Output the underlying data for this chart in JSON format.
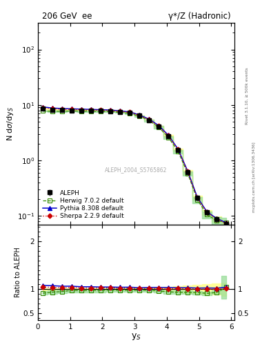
{
  "title_left": "206 GeV  ee",
  "title_right": "γ*/Z (Hadronic)",
  "ylabel_main": "N dσ/dy$_S$",
  "ylabel_ratio": "Ratio to ALEPH",
  "xlabel": "y$_S$",
  "watermark": "ALEPH_2004_S5765862",
  "right_label_top": "Rivet 3.1.10, ≥ 500k events",
  "right_label_bot": "mcplots.cern.ch [arXiv:1306.3436]",
  "xlim": [
    0,
    6.1
  ],
  "ylim_main": [
    0.07,
    300
  ],
  "ylim_ratio": [
    0.35,
    2.35
  ],
  "ratio_yticks": [
    0.5,
    1.0,
    2.0
  ],
  "aleph_x": [
    0.15,
    0.45,
    0.75,
    1.05,
    1.35,
    1.65,
    1.95,
    2.25,
    2.55,
    2.85,
    3.15,
    3.45,
    3.75,
    4.05,
    4.35,
    4.65,
    4.95,
    5.25,
    5.55,
    5.85
  ],
  "aleph_y": [
    8.5,
    8.2,
    8.1,
    8.0,
    8.0,
    7.9,
    7.85,
    7.75,
    7.5,
    7.2,
    6.4,
    5.35,
    4.1,
    2.75,
    1.55,
    0.62,
    0.21,
    0.115,
    0.088,
    0.072
  ],
  "aleph_yerr": [
    0.2,
    0.15,
    0.13,
    0.12,
    0.11,
    0.11,
    0.1,
    0.1,
    0.1,
    0.1,
    0.1,
    0.12,
    0.14,
    0.12,
    0.09,
    0.05,
    0.018,
    0.012,
    0.01,
    0.01
  ],
  "herwig_y": [
    7.8,
    7.7,
    7.7,
    7.8,
    7.75,
    7.7,
    7.65,
    7.6,
    7.35,
    7.05,
    6.25,
    5.25,
    3.95,
    2.6,
    1.45,
    0.58,
    0.195,
    0.105,
    0.082,
    0.075
  ],
  "herwig_lo": [
    7.6,
    7.5,
    7.5,
    7.6,
    7.55,
    7.5,
    7.45,
    7.4,
    7.15,
    6.85,
    6.05,
    5.05,
    3.75,
    2.45,
    1.35,
    0.53,
    0.17,
    0.09,
    0.068,
    0.058
  ],
  "herwig_hi": [
    8.0,
    7.9,
    7.9,
    8.0,
    7.95,
    7.9,
    7.85,
    7.8,
    7.55,
    7.25,
    6.45,
    5.45,
    4.15,
    2.75,
    1.55,
    0.63,
    0.22,
    0.12,
    0.096,
    0.092
  ],
  "pythia_y": [
    9.2,
    8.8,
    8.6,
    8.5,
    8.4,
    8.3,
    8.2,
    8.1,
    7.8,
    7.5,
    6.6,
    5.55,
    4.25,
    2.85,
    1.6,
    0.64,
    0.215,
    0.118,
    0.09,
    0.075
  ],
  "sherpa_y": [
    8.9,
    8.5,
    8.35,
    8.3,
    8.2,
    8.1,
    8.05,
    7.95,
    7.65,
    7.35,
    6.5,
    5.45,
    4.15,
    2.78,
    1.57,
    0.625,
    0.21,
    0.115,
    0.088,
    0.073
  ],
  "herwig_ratio": [
    0.918,
    0.938,
    0.951,
    0.975,
    0.969,
    0.975,
    0.975,
    0.981,
    0.98,
    0.979,
    0.977,
    0.981,
    0.963,
    0.945,
    0.935,
    0.935,
    0.929,
    0.913,
    0.932,
    1.042
  ],
  "herwig_ratio_lo": [
    0.882,
    0.902,
    0.915,
    0.939,
    0.933,
    0.939,
    0.939,
    0.945,
    0.944,
    0.943,
    0.941,
    0.945,
    0.927,
    0.909,
    0.899,
    0.899,
    0.893,
    0.877,
    0.896,
    0.806
  ],
  "herwig_ratio_hi": [
    0.954,
    0.974,
    0.987,
    1.011,
    1.005,
    1.011,
    1.011,
    1.017,
    1.016,
    1.015,
    1.013,
    1.017,
    0.999,
    0.981,
    0.971,
    0.971,
    0.965,
    0.949,
    0.968,
    1.278
  ],
  "pythia_ratio": [
    1.082,
    1.073,
    1.062,
    1.063,
    1.05,
    1.051,
    1.045,
    1.045,
    1.04,
    1.042,
    1.031,
    1.037,
    1.037,
    1.036,
    1.032,
    1.032,
    1.024,
    1.026,
    1.023,
    1.042
  ],
  "sherpa_ratio": [
    1.047,
    1.037,
    1.031,
    1.038,
    1.025,
    1.025,
    1.026,
    1.026,
    1.02,
    1.021,
    1.016,
    1.019,
    1.012,
    1.011,
    1.013,
    1.008,
    1.0,
    1.0,
    1.0,
    1.014
  ],
  "aleph_color": "#000000",
  "herwig_color": "#338800",
  "pythia_color": "#0000cc",
  "sherpa_color": "#cc0000",
  "herwig_band_color": "#99dd99",
  "aleph_band_color": "#ffff99",
  "bg_color": "#ffffff"
}
